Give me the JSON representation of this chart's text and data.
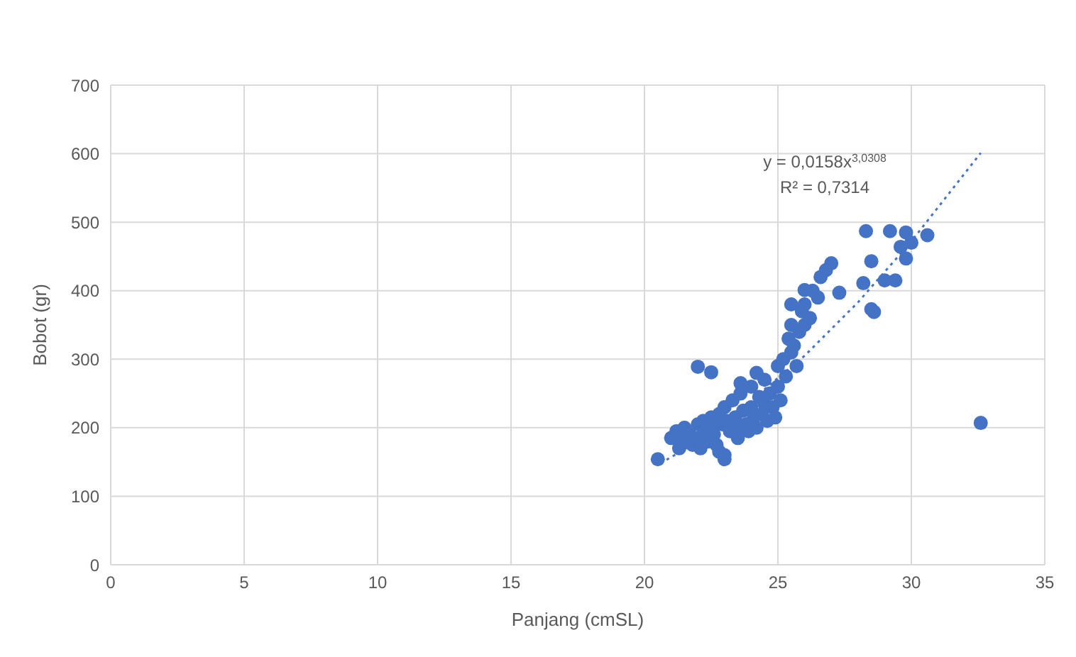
{
  "chart_data": {
    "type": "scatter",
    "xlabel": "Panjang (cmSL)",
    "ylabel": "Bobot (gr)",
    "xlim": [
      0,
      35
    ],
    "ylim": [
      0,
      700
    ],
    "xticks": [
      0,
      5,
      10,
      15,
      20,
      25,
      30,
      35
    ],
    "yticks": [
      0,
      100,
      200,
      300,
      400,
      500,
      600,
      700
    ],
    "grid": true,
    "legend": false,
    "marker": "circle",
    "annotations": [
      "y = 0,0158x$^{3,0308}$",
      "R² = 0,7314"
    ],
    "series": [
      {
        "color": "#4472c4",
        "x": [
          20.5,
          21.0,
          21.2,
          21.4,
          21.5,
          21.7,
          21.8,
          22.0,
          22.0,
          22.1,
          22.2,
          22.3,
          22.4,
          22.5,
          22.5,
          22.6,
          22.7,
          22.8,
          22.9,
          23.0,
          23.0,
          23.1,
          23.2,
          23.3,
          23.4,
          23.5,
          23.5,
          23.6,
          23.7,
          23.8,
          23.9,
          24.0,
          24.0,
          24.1,
          24.2,
          24.3,
          24.4,
          24.5,
          24.5,
          24.6,
          24.7,
          24.8,
          24.9,
          25.0,
          25.0,
          25.1,
          25.2,
          25.3,
          25.4,
          25.5,
          25.5,
          25.6,
          25.7,
          25.8,
          25.9,
          26.0,
          26.0,
          26.2,
          26.3,
          26.5,
          26.6,
          26.8,
          27.0,
          27.3,
          25.5,
          26.0,
          28.2,
          28.3,
          28.5,
          28.5,
          28.6,
          29.0,
          29.2,
          29.4,
          29.6,
          29.8,
          29.8,
          30.0,
          30.6,
          22.0,
          22.5,
          23.0,
          32.6,
          21.3,
          22.8,
          23.6,
          24.2
        ],
        "values": [
          154,
          185,
          195,
          180,
          200,
          190,
          175,
          205,
          185,
          170,
          210,
          195,
          180,
          215,
          200,
          190,
          175,
          220,
          205,
          160,
          230,
          210,
          195,
          240,
          215,
          200,
          185,
          250,
          225,
          205,
          195,
          260,
          230,
          215,
          200,
          245,
          220,
          270,
          235,
          210,
          250,
          230,
          215,
          290,
          260,
          240,
          300,
          275,
          330,
          350,
          310,
          320,
          290,
          340,
          370,
          380,
          350,
          360,
          400,
          390,
          420,
          430,
          440,
          397,
          380,
          401,
          411,
          487,
          443,
          373,
          369,
          415,
          487,
          415,
          464,
          447,
          485,
          470,
          481,
          289,
          281,
          154,
          207,
          170,
          165,
          265,
          280
        ]
      },
      {
        "type": "line",
        "color": "#4472c4",
        "line_style": "dotted",
        "marker": "none",
        "x": [
          20.6,
          22,
          24,
          26,
          28,
          30,
          32.6
        ],
        "values": [
          148,
          180,
          240,
          305,
          383,
          472,
          601
        ]
      }
    ]
  }
}
